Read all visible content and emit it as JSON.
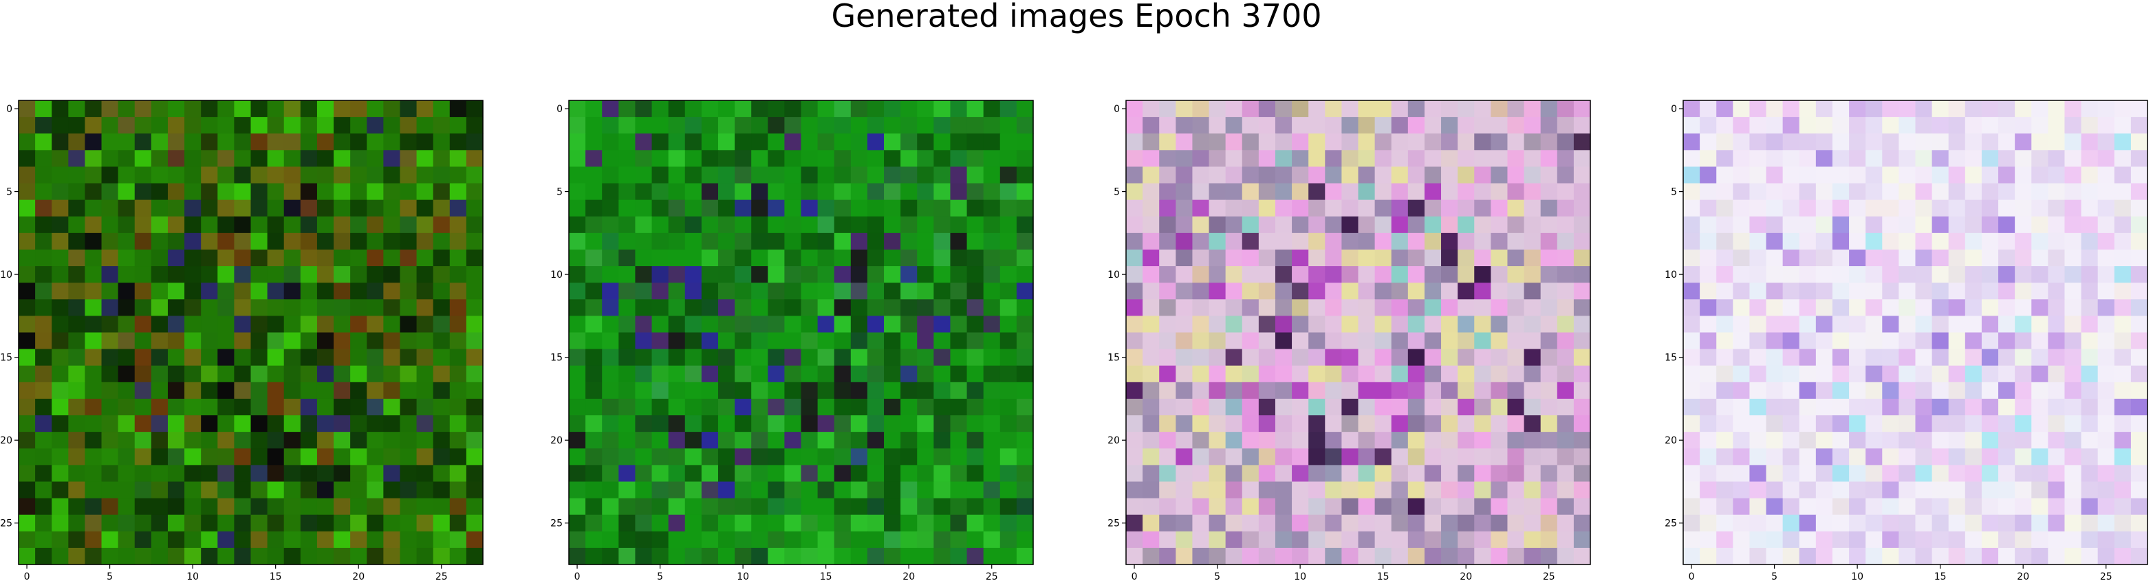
{
  "figure": {
    "title": "Generated images Epoch 3700"
  },
  "panels": [
    {
      "name": "generated-image-1",
      "palette": {
        "base": "#1f7a05",
        "dark": "#0d3d03",
        "olive": "#6f6a10",
        "bright": "#36c20a",
        "brown": "#6a3a0a",
        "black": "#0a0a0a",
        "accent": "#2a2a6a"
      },
      "xticks": [
        "0",
        "5",
        "10",
        "15",
        "20",
        "25"
      ],
      "yticks": [
        "0",
        "5",
        "10",
        "15",
        "20",
        "25"
      ]
    },
    {
      "name": "generated-image-2",
      "palette": {
        "base": "#129a12",
        "dark": "#0b5a0b",
        "olive": "#1f7f1c",
        "bright": "#2cc22a",
        "brown": "#4a2a6a",
        "black": "#1a1a1a",
        "accent": "#2a2a9a"
      },
      "xticks": [
        "0",
        "5",
        "10",
        "15",
        "20",
        "25"
      ],
      "yticks": [
        "0",
        "5",
        "10",
        "15",
        "20",
        "25"
      ]
    },
    {
      "name": "generated-image-3",
      "palette": {
        "base": "#e2c8e0",
        "dark": "#9a8ab0",
        "olive": "#e8e0a0",
        "bright": "#f0a8e8",
        "brown": "#b040c0",
        "black": "#3a1a4a",
        "accent": "#8ad0c8"
      },
      "xticks": [
        "0",
        "5",
        "10",
        "15",
        "20",
        "25"
      ],
      "yticks": [
        "0",
        "5",
        "10",
        "15",
        "20",
        "25"
      ]
    },
    {
      "name": "generated-image-4",
      "palette": {
        "base": "#f4f0fa",
        "dark": "#e0d0f0",
        "olive": "#f6f6e8",
        "bright": "#f0c8f4",
        "brown": "#c8a0e8",
        "black": "#a080e0",
        "accent": "#a8e8f4"
      },
      "xticks": [
        "0",
        "5",
        "10",
        "15",
        "20",
        "25"
      ],
      "yticks": [
        "0",
        "5",
        "10",
        "15",
        "20",
        "25"
      ]
    }
  ]
}
